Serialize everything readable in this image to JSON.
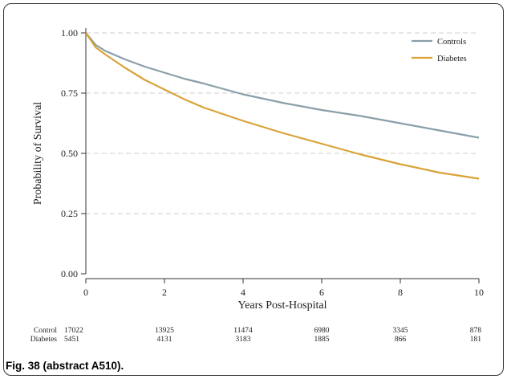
{
  "chart_data": {
    "type": "line",
    "title": "",
    "xlabel": "Years Post-Hospital",
    "ylabel": "Probability of Survival",
    "xlim": [
      0,
      10
    ],
    "ylim": [
      0,
      1
    ],
    "x_ticks": [
      0,
      2,
      4,
      6,
      8,
      10
    ],
    "y_ticks": [
      "0.00",
      "0.25",
      "0.50",
      "0.75",
      "1.00"
    ],
    "grid": "horizontal dashed",
    "legend_position": "top-right",
    "series": [
      {
        "name": "Controls",
        "color": "#8a9fa9",
        "x": [
          0,
          0.25,
          0.5,
          1,
          1.5,
          2,
          2.5,
          3,
          4,
          5,
          6,
          7,
          8,
          9,
          10
        ],
        "y": [
          1.0,
          0.95,
          0.925,
          0.89,
          0.86,
          0.835,
          0.81,
          0.79,
          0.745,
          0.71,
          0.68,
          0.655,
          0.625,
          0.595,
          0.565
        ]
      },
      {
        "name": "Diabetes",
        "color": "#d9a339",
        "x": [
          0,
          0.25,
          0.5,
          1,
          1.5,
          2,
          2.5,
          3,
          4,
          5,
          6,
          7,
          8,
          9,
          10
        ],
        "y": [
          1.0,
          0.94,
          0.91,
          0.855,
          0.805,
          0.765,
          0.725,
          0.69,
          0.635,
          0.585,
          0.54,
          0.495,
          0.455,
          0.42,
          0.395
        ]
      }
    ],
    "risk_table": {
      "x": [
        0,
        2,
        4,
        6,
        8,
        10
      ],
      "rows": [
        {
          "label": "Control",
          "values": [
            "17022",
            "13925",
            "11474",
            "6980",
            "3345",
            "878"
          ]
        },
        {
          "label": "Diabetes",
          "values": [
            "5451",
            "4131",
            "3183",
            "1885",
            "866",
            "181"
          ]
        }
      ]
    }
  },
  "caption": "Fig. 38 (abstract A510)."
}
